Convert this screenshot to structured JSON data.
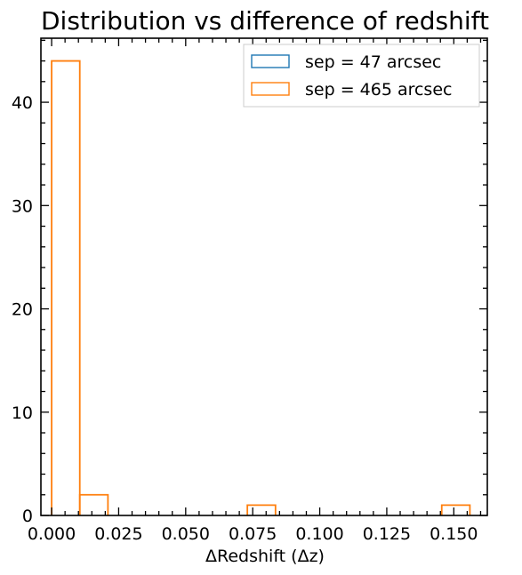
{
  "chart_data": {
    "type": "bar",
    "title": "Distribution vs difference of redshift",
    "xlabel": "ΔRedshift (Δz)",
    "ylabel": "",
    "xlim": [
      -0.004,
      0.1625
    ],
    "ylim": [
      0,
      46.2
    ],
    "x_ticks": [
      0.0,
      0.025,
      0.05,
      0.075,
      0.1,
      0.125,
      0.15
    ],
    "x_tick_labels": [
      "0.000",
      "0.025",
      "0.050",
      "0.075",
      "0.100",
      "0.125",
      "0.150"
    ],
    "y_ticks": [
      0,
      10,
      20,
      30,
      40
    ],
    "y_tick_labels": [
      "0",
      "10",
      "20",
      "30",
      "40"
    ],
    "grid": false,
    "legend_position": "top-right",
    "series": [
      {
        "name": "sep = 47 arcsec",
        "color": "#1f77b4",
        "bins": [],
        "counts": []
      },
      {
        "name": "sep = 465 arcsec",
        "color": "#ff7f0e",
        "bins": [
          [
            0.0,
            0.0105
          ],
          [
            0.0105,
            0.021
          ],
          [
            0.073,
            0.0835
          ],
          [
            0.1455,
            0.156
          ]
        ],
        "counts": [
          44,
          2,
          1,
          1
        ]
      }
    ]
  }
}
